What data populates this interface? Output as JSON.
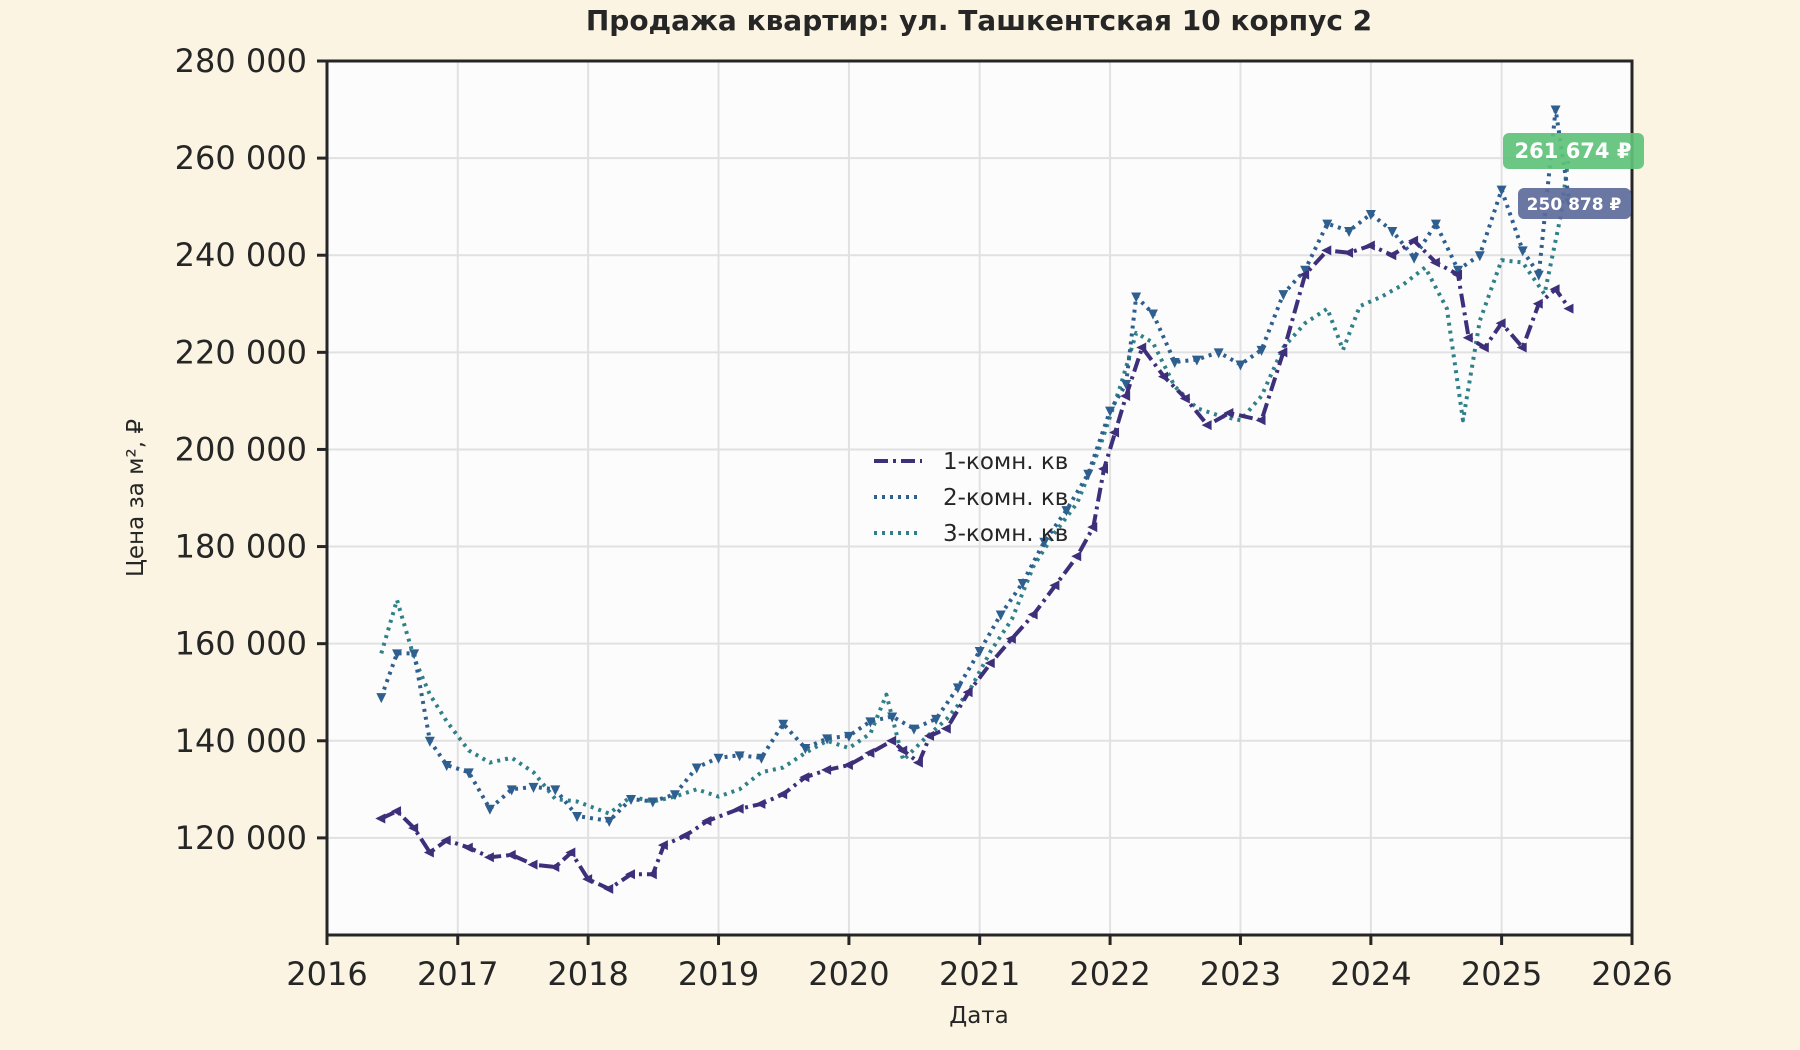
{
  "chart_data": {
    "type": "line",
    "title": "Продажа квартир: ул. Ташкентская 10 корпус 2",
    "xlabel": "Дата",
    "ylabel": "Цена за м², ₽",
    "xlim": [
      "2016-01-01",
      "2026-01-01"
    ],
    "ylim": [
      100000,
      280000
    ],
    "x_ticks": [
      "2016",
      "2017",
      "2018",
      "2019",
      "2020",
      "2021",
      "2022",
      "2023",
      "2024",
      "2025",
      "2026"
    ],
    "y_ticks": [
      "120 000",
      "140 000",
      "160 000",
      "180 000",
      "200 000",
      "220 000",
      "240 000",
      "260 000",
      "280 000"
    ],
    "y_tick_values": [
      120000,
      140000,
      160000,
      180000,
      200000,
      220000,
      240000,
      260000,
      280000
    ],
    "grid": true,
    "legend_position": "center",
    "series": [
      {
        "name": "1-комн. кв",
        "color": "#3e2f7a",
        "style": "dashdot",
        "marker": "left-triangle",
        "points": [
          [
            "2016-06-01",
            124000
          ],
          [
            "2016-07-15",
            125500
          ],
          [
            "2016-09-01",
            122000
          ],
          [
            "2016-10-15",
            117000
          ],
          [
            "2016-12-01",
            119500
          ],
          [
            "2017-02-01",
            118000
          ],
          [
            "2017-04-01",
            116000
          ],
          [
            "2017-06-01",
            116500
          ],
          [
            "2017-08-01",
            114500
          ],
          [
            "2017-10-01",
            114000
          ],
          [
            "2017-11-15",
            117000
          ],
          [
            "2018-01-01",
            111500
          ],
          [
            "2018-03-01",
            109500
          ],
          [
            "2018-05-01",
            112500
          ],
          [
            "2018-07-01",
            112500
          ],
          [
            "2018-08-01",
            118500
          ],
          [
            "2018-10-01",
            120500
          ],
          [
            "2018-12-01",
            123500
          ],
          [
            "2019-03-01",
            126000
          ],
          [
            "2019-05-01",
            127000
          ],
          [
            "2019-07-01",
            129000
          ],
          [
            "2019-09-01",
            132500
          ],
          [
            "2019-11-01",
            134000
          ],
          [
            "2020-01-01",
            135000
          ],
          [
            "2020-03-01",
            137500
          ],
          [
            "2020-05-01",
            140000
          ],
          [
            "2020-06-01",
            138000
          ],
          [
            "2020-07-15",
            135500
          ],
          [
            "2020-08-15",
            141000
          ],
          [
            "2020-10-01",
            142500
          ],
          [
            "2020-12-01",
            150000
          ],
          [
            "2021-02-01",
            156000
          ],
          [
            "2021-04-01",
            161000
          ],
          [
            "2021-06-01",
            166000
          ],
          [
            "2021-08-01",
            172000
          ],
          [
            "2021-10-01",
            178000
          ],
          [
            "2021-11-15",
            184000
          ],
          [
            "2021-12-15",
            196000
          ],
          [
            "2022-01-15",
            203500
          ],
          [
            "2022-02-15",
            211000
          ],
          [
            "2022-04-01",
            221000
          ],
          [
            "2022-06-01",
            215000
          ],
          [
            "2022-08-01",
            210500
          ],
          [
            "2022-10-01",
            205000
          ],
          [
            "2022-12-01",
            207500
          ],
          [
            "2023-03-01",
            206000
          ],
          [
            "2023-05-01",
            220000
          ],
          [
            "2023-07-01",
            236000
          ],
          [
            "2023-09-01",
            241000
          ],
          [
            "2023-11-01",
            240500
          ],
          [
            "2024-01-01",
            242000
          ],
          [
            "2024-03-01",
            240000
          ],
          [
            "2024-05-01",
            243000
          ],
          [
            "2024-07-01",
            238500
          ],
          [
            "2024-09-01",
            236000
          ],
          [
            "2024-10-01",
            223000
          ],
          [
            "2024-11-15",
            221000
          ],
          [
            "2025-01-01",
            226000
          ],
          [
            "2025-03-01",
            221000
          ],
          [
            "2025-04-15",
            230000
          ],
          [
            "2025-06-01",
            233000
          ],
          [
            "2025-07-10",
            229000
          ]
        ]
      },
      {
        "name": "2-комн. кв",
        "color": "#2f5f8f",
        "style": "dotted",
        "marker": "down-triangle",
        "points": [
          [
            "2016-06-01",
            149000
          ],
          [
            "2016-07-15",
            158000
          ],
          [
            "2016-09-01",
            158000
          ],
          [
            "2016-10-15",
            140000
          ],
          [
            "2016-12-01",
            135000
          ],
          [
            "2017-02-01",
            133500
          ],
          [
            "2017-04-01",
            126000
          ],
          [
            "2017-06-01",
            130000
          ],
          [
            "2017-08-01",
            130500
          ],
          [
            "2017-10-01",
            130000
          ],
          [
            "2017-12-01",
            124500
          ],
          [
            "2018-03-01",
            123500
          ],
          [
            "2018-05-01",
            128000
          ],
          [
            "2018-07-01",
            127500
          ],
          [
            "2018-09-01",
            129000
          ],
          [
            "2018-11-01",
            134500
          ],
          [
            "2019-01-01",
            136500
          ],
          [
            "2019-03-01",
            137000
          ],
          [
            "2019-05-01",
            136500
          ],
          [
            "2019-07-01",
            143500
          ],
          [
            "2019-09-01",
            138500
          ],
          [
            "2019-11-01",
            140500
          ],
          [
            "2020-01-01",
            141000
          ],
          [
            "2020-03-01",
            144000
          ],
          [
            "2020-05-01",
            145000
          ],
          [
            "2020-07-01",
            142500
          ],
          [
            "2020-09-01",
            144500
          ],
          [
            "2020-11-01",
            151000
          ],
          [
            "2021-01-01",
            158500
          ],
          [
            "2021-03-01",
            166000
          ],
          [
            "2021-05-01",
            172500
          ],
          [
            "2021-07-01",
            181000
          ],
          [
            "2021-09-01",
            187500
          ],
          [
            "2021-11-01",
            195000
          ],
          [
            "2022-01-01",
            208000
          ],
          [
            "2022-02-15",
            213500
          ],
          [
            "2022-03-15",
            231500
          ],
          [
            "2022-05-01",
            228000
          ],
          [
            "2022-07-01",
            218000
          ],
          [
            "2022-09-01",
            218500
          ],
          [
            "2022-11-01",
            220000
          ],
          [
            "2023-01-01",
            217500
          ],
          [
            "2023-03-01",
            220500
          ],
          [
            "2023-05-01",
            232000
          ],
          [
            "2023-07-01",
            237000
          ],
          [
            "2023-09-01",
            246500
          ],
          [
            "2023-11-01",
            245000
          ],
          [
            "2024-01-01",
            248500
          ],
          [
            "2024-03-01",
            245000
          ],
          [
            "2024-05-01",
            239500
          ],
          [
            "2024-07-01",
            246500
          ],
          [
            "2024-09-01",
            237000
          ],
          [
            "2024-11-01",
            240000
          ],
          [
            "2025-01-01",
            253500
          ],
          [
            "2025-03-01",
            241000
          ],
          [
            "2025-04-15",
            236000
          ],
          [
            "2025-06-01",
            270000
          ],
          [
            "2025-07-10",
            250878
          ]
        ]
      },
      {
        "name": "3-комн. кв",
        "color": "#2f8088",
        "style": "dotted",
        "marker": "none",
        "points": [
          [
            "2016-06-01",
            158000
          ],
          [
            "2016-07-15",
            169000
          ],
          [
            "2016-09-01",
            157000
          ],
          [
            "2016-10-15",
            149500
          ],
          [
            "2016-12-01",
            144000
          ],
          [
            "2017-02-01",
            138000
          ],
          [
            "2017-04-01",
            135500
          ],
          [
            "2017-06-01",
            136500
          ],
          [
            "2017-08-01",
            133500
          ],
          [
            "2017-10-01",
            128000
          ],
          [
            "2017-12-01",
            127500
          ],
          [
            "2018-03-01",
            125000
          ],
          [
            "2018-05-01",
            128500
          ],
          [
            "2018-07-01",
            127500
          ],
          [
            "2018-09-01",
            128500
          ],
          [
            "2018-11-01",
            130000
          ],
          [
            "2019-01-01",
            128500
          ],
          [
            "2019-03-01",
            130000
          ],
          [
            "2019-05-01",
            133500
          ],
          [
            "2019-07-01",
            134500
          ],
          [
            "2019-09-01",
            137500
          ],
          [
            "2019-11-01",
            140000
          ],
          [
            "2020-01-01",
            138500
          ],
          [
            "2020-03-01",
            141500
          ],
          [
            "2020-04-15",
            149500
          ],
          [
            "2020-06-01",
            136000
          ],
          [
            "2020-08-01",
            140500
          ],
          [
            "2020-10-01",
            144500
          ],
          [
            "2020-12-01",
            150000
          ],
          [
            "2021-02-01",
            158500
          ],
          [
            "2021-04-01",
            165000
          ],
          [
            "2021-06-01",
            176000
          ],
          [
            "2021-08-01",
            183000
          ],
          [
            "2021-10-01",
            189000
          ],
          [
            "2021-12-01",
            200000
          ],
          [
            "2022-02-01",
            213500
          ],
          [
            "2022-03-15",
            224000
          ],
          [
            "2022-05-01",
            222000
          ],
          [
            "2022-07-01",
            213000
          ],
          [
            "2022-09-01",
            208500
          ],
          [
            "2022-11-01",
            207000
          ],
          [
            "2023-01-01",
            206000
          ],
          [
            "2023-03-01",
            211000
          ],
          [
            "2023-05-01",
            221000
          ],
          [
            "2023-07-01",
            226000
          ],
          [
            "2023-09-01",
            229000
          ],
          [
            "2023-10-15",
            220500
          ],
          [
            "2023-12-01",
            229500
          ],
          [
            "2024-02-01",
            231500
          ],
          [
            "2024-04-01",
            234000
          ],
          [
            "2024-06-01",
            237500
          ],
          [
            "2024-08-01",
            229000
          ],
          [
            "2024-09-15",
            206000
          ],
          [
            "2024-11-01",
            226500
          ],
          [
            "2025-01-01",
            239000
          ],
          [
            "2025-03-01",
            238500
          ],
          [
            "2025-05-01",
            232000
          ],
          [
            "2025-06-15",
            248000
          ],
          [
            "2025-07-10",
            261674
          ]
        ]
      }
    ],
    "annotations": [
      {
        "text": "261 674 ₽",
        "value": 261674,
        "color": "#5fc27a"
      },
      {
        "text": "250 878 ₽",
        "value": 250878,
        "color": "#5c6b9a"
      }
    ]
  }
}
